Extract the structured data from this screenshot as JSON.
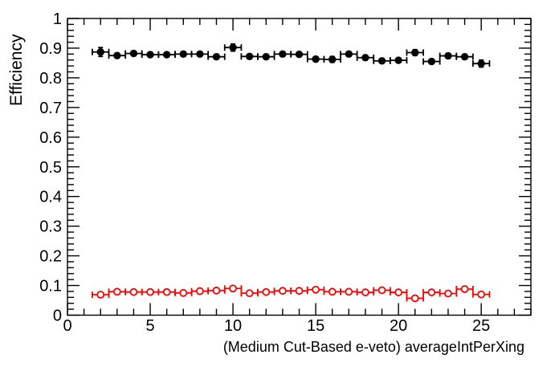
{
  "page": {
    "background": "#ffffff",
    "frame_color": "#000000"
  },
  "chart_data": {
    "type": "scatter",
    "title": "",
    "xlabel": "(Medium Cut-Based e-veto) averageIntPerXing",
    "ylabel": "Efficiency",
    "xlim": [
      0,
      28
    ],
    "ylim": [
      0,
      1
    ],
    "x_major_ticks": [
      0,
      5,
      10,
      15,
      20,
      25
    ],
    "x_minor_step": 1,
    "y_major_step": 0.1,
    "y_minor_step": 0.02,
    "grid": false,
    "legend": "none",
    "x": [
      2,
      3,
      4,
      5,
      6,
      7,
      8,
      9,
      10,
      11,
      12,
      13,
      14,
      15,
      16,
      17,
      18,
      19,
      20,
      21,
      22,
      23,
      24,
      25
    ],
    "xerr": 0.5,
    "series": [
      {
        "name": "black-filled-circles",
        "marker": "filled-circle",
        "color": "#000000",
        "values": [
          0.887,
          0.875,
          0.882,
          0.878,
          0.878,
          0.88,
          0.88,
          0.871,
          0.902,
          0.872,
          0.871,
          0.88,
          0.879,
          0.863,
          0.862,
          0.88,
          0.868,
          0.857,
          0.859,
          0.885,
          0.855,
          0.874,
          0.871,
          0.848
        ],
        "yerr": [
          0.015,
          0.008,
          0.008,
          0.008,
          0.008,
          0.008,
          0.008,
          0.008,
          0.012,
          0.008,
          0.008,
          0.008,
          0.008,
          0.008,
          0.01,
          0.008,
          0.008,
          0.008,
          0.008,
          0.01,
          0.008,
          0.008,
          0.008,
          0.012
        ]
      },
      {
        "name": "red-open-circles",
        "marker": "open-circle",
        "color": "#ff0000",
        "values": [
          0.069,
          0.079,
          0.078,
          0.078,
          0.078,
          0.075,
          0.081,
          0.083,
          0.09,
          0.074,
          0.078,
          0.082,
          0.082,
          0.086,
          0.079,
          0.079,
          0.077,
          0.084,
          0.077,
          0.057,
          0.077,
          0.073,
          0.088,
          0.07
        ],
        "yerr": [
          0.008,
          0.005,
          0.005,
          0.005,
          0.005,
          0.005,
          0.005,
          0.005,
          0.005,
          0.005,
          0.005,
          0.005,
          0.005,
          0.005,
          0.005,
          0.005,
          0.005,
          0.005,
          0.005,
          0.008,
          0.005,
          0.005,
          0.008,
          0.005
        ]
      }
    ]
  }
}
